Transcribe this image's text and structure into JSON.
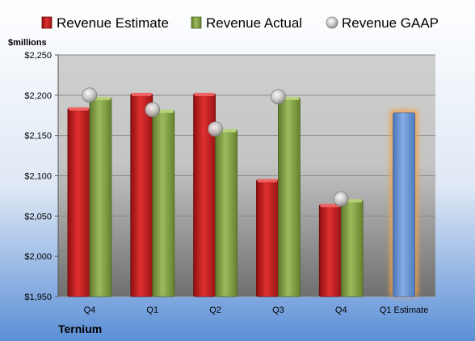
{
  "chart_data": {
    "type": "bar",
    "company": "Ternium",
    "unit_label": "$millions",
    "categories": [
      "Q4",
      "Q1",
      "Q2",
      "Q3",
      "Q4",
      "Q1 Estimate"
    ],
    "series": [
      {
        "name": "Revenue Estimate",
        "values": [
          2184,
          2202,
          2202,
          2095,
          2064,
          null
        ],
        "color": "#cc1f1f"
      },
      {
        "name": "Revenue Actual",
        "values": [
          2197,
          2181,
          2157,
          2197,
          2070,
          null
        ],
        "color": "#8aa64a"
      },
      {
        "name": "Revenue GAAP",
        "values": [
          2200,
          2182,
          2158,
          2198,
          2071,
          null
        ],
        "color": "#b8b8b8"
      }
    ],
    "estimate": {
      "category": "Q1 Estimate",
      "value": 2178,
      "color": "#6f9bd6",
      "glow": "#f4a24a"
    },
    "ylim": [
      1950,
      2250
    ],
    "yticks": [
      1950,
      2000,
      2050,
      2100,
      2150,
      2200,
      2250
    ],
    "ytick_labels": [
      "$1,950",
      "$2,000",
      "$2,050",
      "$2,100",
      "$2,150",
      "$2,200",
      "$2,250"
    ],
    "legend_position": "top",
    "grid": true
  }
}
